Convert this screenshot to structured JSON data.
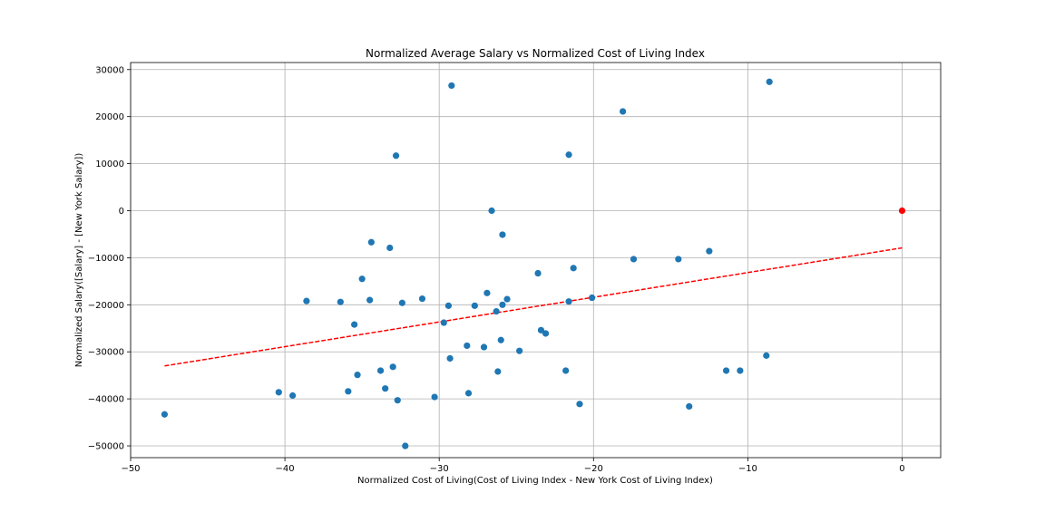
{
  "chart_data": {
    "type": "scatter",
    "title": "Normalized Average Salary vs Normalized Cost of Living Index",
    "xlabel": "Normalized Cost of Living(Cost of Living Index - New York Cost of Living Index)",
    "ylabel": "Normalized Salary([Salary] - [New York Salary])",
    "xlim": [
      -50,
      2.5
    ],
    "ylim": [
      -52500,
      31500
    ],
    "xticks": [
      -50,
      -40,
      -30,
      -20,
      -10,
      0
    ],
    "yticks": [
      30000,
      20000,
      10000,
      0,
      -10000,
      -20000,
      -30000,
      -40000,
      -50000
    ],
    "grid": true,
    "colors": {
      "points": "#1f77b4",
      "trendline": "#ff0000",
      "reference_point": "#ff0000"
    },
    "points": [
      [
        -47.8,
        -43300
      ],
      [
        -40.4,
        -38600
      ],
      [
        -39.5,
        -39300
      ],
      [
        -38.6,
        -19200
      ],
      [
        -36.4,
        -19400
      ],
      [
        -35.9,
        -38400
      ],
      [
        -35.5,
        -24200
      ],
      [
        -35.3,
        -34900
      ],
      [
        -35.0,
        -14500
      ],
      [
        -34.5,
        -19000
      ],
      [
        -34.4,
        -6700
      ],
      [
        -33.8,
        -34000
      ],
      [
        -33.5,
        -37800
      ],
      [
        -33.2,
        -7900
      ],
      [
        -33.0,
        -33200
      ],
      [
        -32.8,
        11700
      ],
      [
        -32.7,
        -40300
      ],
      [
        -32.4,
        -19600
      ],
      [
        -32.2,
        -50000
      ],
      [
        -31.1,
        -18700
      ],
      [
        -30.3,
        -39600
      ],
      [
        -29.7,
        -23800
      ],
      [
        -29.4,
        -20200
      ],
      [
        -29.3,
        -31400
      ],
      [
        -29.2,
        26600
      ],
      [
        -28.2,
        -28700
      ],
      [
        -28.1,
        -38800
      ],
      [
        -27.7,
        -20200
      ],
      [
        -27.1,
        -29000
      ],
      [
        -26.9,
        -17500
      ],
      [
        -26.6,
        0
      ],
      [
        -26.3,
        -21400
      ],
      [
        -26.2,
        -34200
      ],
      [
        -26.0,
        -27500
      ],
      [
        -25.9,
        -5100
      ],
      [
        -25.9,
        -20000
      ],
      [
        -25.6,
        -18800
      ],
      [
        -24.8,
        -29800
      ],
      [
        -23.6,
        -13300
      ],
      [
        -23.4,
        -25400
      ],
      [
        -23.1,
        -26100
      ],
      [
        -21.8,
        -34000
      ],
      [
        -21.6,
        -19300
      ],
      [
        -21.6,
        11900
      ],
      [
        -21.3,
        -12200
      ],
      [
        -20.9,
        -41100
      ],
      [
        -20.1,
        -18500
      ],
      [
        -18.1,
        21100
      ],
      [
        -17.4,
        -10300
      ],
      [
        -14.5,
        -10300
      ],
      [
        -13.8,
        -41600
      ],
      [
        -12.5,
        -8600
      ],
      [
        -11.4,
        -34000
      ],
      [
        -10.5,
        -34000
      ],
      [
        -8.8,
        -30800
      ],
      [
        -8.6,
        27400
      ]
    ],
    "reference_point": [
      0,
      0
    ],
    "trendline": {
      "x": [
        -47.8,
        0
      ],
      "y": [
        -33000,
        -7900
      ],
      "style": "dashed"
    }
  }
}
